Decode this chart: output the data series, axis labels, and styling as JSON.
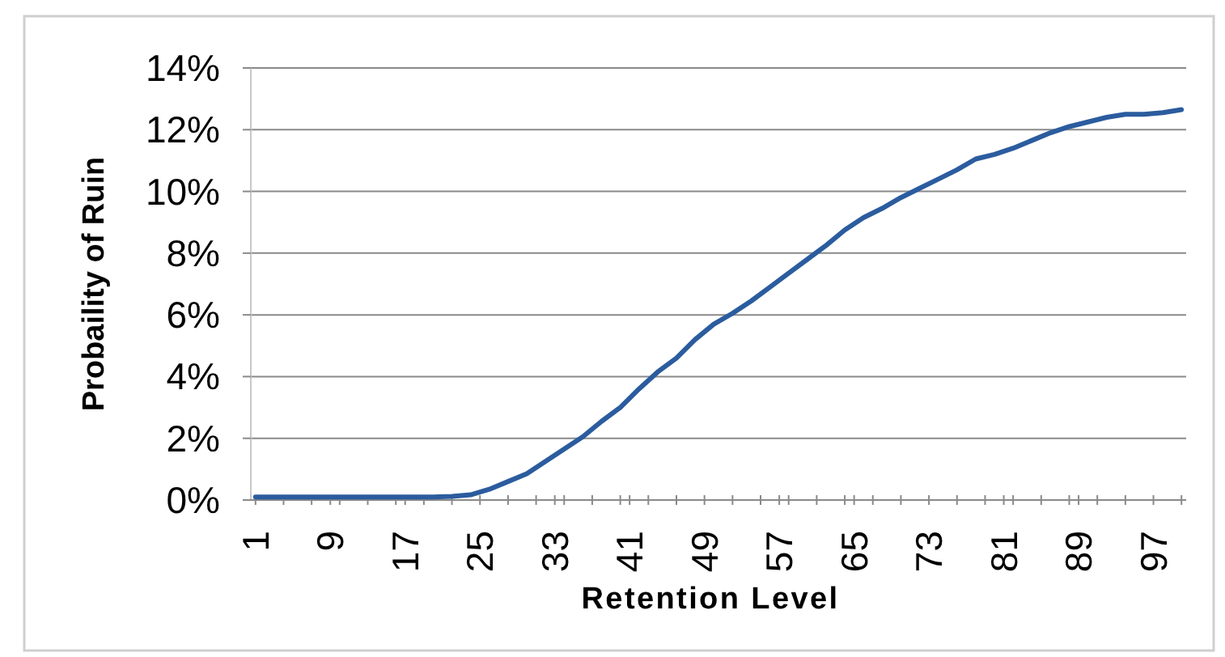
{
  "chart_data": {
    "type": "line",
    "xlabel": "Retention Level",
    "ylabel": "Probaility of Ruin",
    "x": [
      1,
      10,
      20,
      22,
      24,
      26,
      28,
      30,
      32,
      34,
      36,
      38,
      40,
      42,
      44,
      46,
      48,
      50,
      52,
      54,
      56,
      58,
      60,
      62,
      64,
      66,
      68,
      70,
      72,
      74,
      76,
      78,
      80,
      82,
      84,
      86,
      88,
      90,
      92,
      94,
      96,
      98,
      100
    ],
    "series": [
      {
        "color": "#2b5c9e",
        "values": [
          0.1,
          0.1,
          0.1,
          0.12,
          0.17,
          0.35,
          0.6,
          0.85,
          1.25,
          1.65,
          2.05,
          2.55,
          3.0,
          3.6,
          4.15,
          4.6,
          5.2,
          5.7,
          6.05,
          6.45,
          6.9,
          7.35,
          7.8,
          8.25,
          8.75,
          9.15,
          9.45,
          9.8,
          10.1,
          10.4,
          10.7,
          11.05,
          11.2,
          11.4,
          11.65,
          11.9,
          12.1,
          12.25,
          12.4,
          12.5,
          12.5,
          12.55,
          12.65
        ]
      }
    ],
    "xlim": [
      0.5,
      100.5
    ],
    "xticks": [
      1,
      {
        "value": 4,
        "label": null
      },
      {
        "value": 7,
        "label": null
      },
      9,
      {
        "value": 10,
        "label": null
      },
      {
        "value": 13,
        "label": null
      },
      {
        "value": 16,
        "label": null
      },
      17,
      {
        "value": 19,
        "label": null
      },
      {
        "value": 22,
        "label": null
      },
      25,
      {
        "value": 28,
        "label": null
      },
      {
        "value": 31,
        "label": null
      },
      33,
      {
        "value": 34,
        "label": null
      },
      {
        "value": 37,
        "label": null
      },
      {
        "value": 40,
        "label": null
      },
      41,
      {
        "value": 43,
        "label": null
      },
      {
        "value": 46,
        "label": null
      },
      49,
      {
        "value": 52,
        "label": null
      },
      {
        "value": 55,
        "label": null
      },
      57,
      {
        "value": 58,
        "label": null
      },
      {
        "value": 61,
        "label": null
      },
      {
        "value": 64,
        "label": null
      },
      65,
      {
        "value": 67,
        "label": null
      },
      {
        "value": 70,
        "label": null
      },
      73,
      {
        "value": 76,
        "label": null
      },
      {
        "value": 79,
        "label": null
      },
      81,
      {
        "value": 82,
        "label": null
      },
      {
        "value": 85,
        "label": null
      },
      {
        "value": 88,
        "label": null
      },
      89,
      {
        "value": 91,
        "label": null
      },
      {
        "value": 94,
        "label": null
      },
      97,
      {
        "value": 100,
        "label": null
      }
    ],
    "ylim": [
      0,
      14
    ],
    "yticks": [
      {
        "value": 0,
        "label": "0%"
      },
      {
        "value": 2,
        "label": "2%"
      },
      {
        "value": 4,
        "label": "4%"
      },
      {
        "value": 6,
        "label": "6%"
      },
      {
        "value": 8,
        "label": "8%"
      },
      {
        "value": 10,
        "label": "10%"
      },
      {
        "value": 12,
        "label": "12%"
      },
      {
        "value": 14,
        "label": "14%"
      }
    ],
    "grid": "y"
  }
}
